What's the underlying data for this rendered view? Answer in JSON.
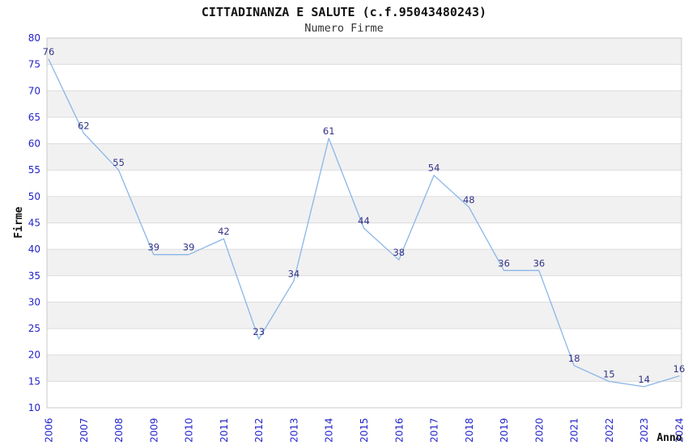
{
  "chart_data": {
    "type": "line",
    "title": "CITTADINANZA E SALUTE (c.f.95043480243)",
    "subtitle": "Numero Firme",
    "xlabel": "Anno",
    "ylabel": "Firme",
    "x": [
      "2006",
      "2007",
      "2008",
      "2009",
      "2010",
      "2011",
      "2012",
      "2013",
      "2014",
      "2015",
      "2016",
      "2017",
      "2018",
      "2019",
      "2020",
      "2021",
      "2022",
      "2023",
      "2024"
    ],
    "series": [
      {
        "name": "Numero Firme",
        "values": [
          76,
          62,
          55,
          39,
          39,
          42,
          23,
          34,
          61,
          44,
          38,
          54,
          48,
          36,
          36,
          18,
          15,
          14,
          16
        ]
      }
    ],
    "ylim": [
      10,
      80
    ],
    "ytick_step": 5,
    "grid": true,
    "legend_position": "none",
    "markers": false,
    "background_bands": "alternating horizontal 5-unit stripes, gray on odd bands from bottom",
    "colors": {
      "line": "#8ab6e8",
      "data_label": "#333388",
      "tick_label": "#2323cc",
      "axis_title": "#111111",
      "band": "#f1f1f1",
      "gridline": "#dcdcdc",
      "plot_border": "#c9c9c9",
      "title_text": "#111111",
      "subtitle_text": "#333333"
    }
  }
}
